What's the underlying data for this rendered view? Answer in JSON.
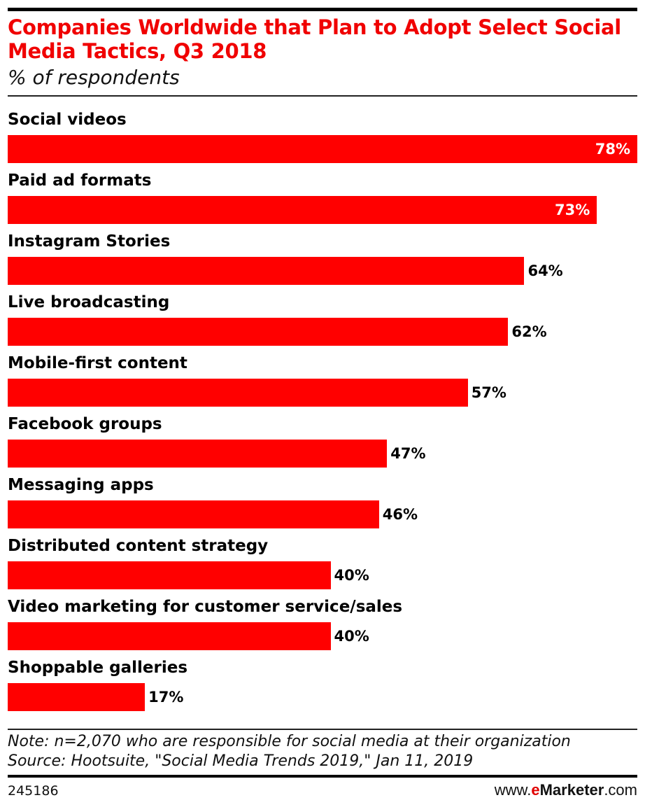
{
  "colors": {
    "bar": "#ff0000",
    "title": "#f00000"
  },
  "chart_data": {
    "type": "bar",
    "orientation": "horizontal",
    "title": "Companies Worldwide that Plan to Adopt Select Social Media Tactics, Q3 2018",
    "subtitle": "% of respondents",
    "categories": [
      "Social videos",
      "Paid ad formats",
      "Instagram Stories",
      "Live broadcasting",
      "Mobile-first content",
      "Facebook groups",
      "Messaging apps",
      "Distributed content strategy",
      "Video marketing for customer service/sales",
      "Shoppable galleries"
    ],
    "values": [
      78,
      73,
      64,
      62,
      57,
      47,
      46,
      40,
      40,
      17
    ],
    "value_labels": [
      "78%",
      "73%",
      "64%",
      "62%",
      "57%",
      "47%",
      "46%",
      "40%",
      "40%",
      "17%"
    ],
    "unit": "%",
    "xlim": [
      0,
      78
    ],
    "grid": false
  },
  "footer": {
    "note": "Note: n=2,070 who are responsible for social media at their organization",
    "source": "Source: Hootsuite, \"Social Media Trends 2019,\" Jan 11, 2019",
    "chart_id": "245186",
    "logo": "www.eMarketer.com"
  }
}
